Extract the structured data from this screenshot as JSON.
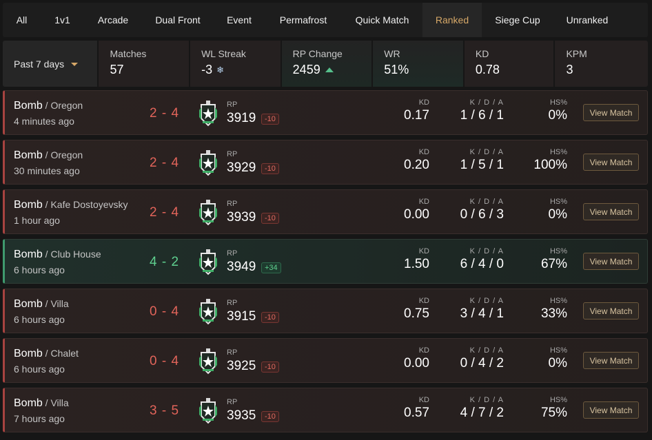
{
  "tabs": [
    {
      "label": "All",
      "active": false
    },
    {
      "label": "1v1",
      "active": false
    },
    {
      "label": "Arcade",
      "active": false
    },
    {
      "label": "Dual Front",
      "active": false
    },
    {
      "label": "Event",
      "active": false
    },
    {
      "label": "Permafrost",
      "active": false
    },
    {
      "label": "Quick Match",
      "active": false
    },
    {
      "label": "Ranked",
      "active": true
    },
    {
      "label": "Siege Cup",
      "active": false
    },
    {
      "label": "Unranked",
      "active": false
    }
  ],
  "period": {
    "label": "Past 7 days"
  },
  "stats": {
    "matches": {
      "label": "Matches",
      "value": "57"
    },
    "wl_streak": {
      "label": "WL Streak",
      "value": "-3",
      "icon": "snowflake-icon"
    },
    "rp_change": {
      "label": "RP Change",
      "value": "2459",
      "icon": "arrow-up-icon"
    },
    "wr": {
      "label": "WR",
      "value": "51%"
    },
    "kd": {
      "label": "KD",
      "value": "0.78"
    },
    "kpm": {
      "label": "KPM",
      "value": "3"
    }
  },
  "column_labels": {
    "rp": "RP",
    "kd": "KD",
    "kda": "K / D / A",
    "hs": "HS%"
  },
  "view_match_label": "View Match",
  "colors": {
    "accent": "#d6a868",
    "loss": "#e2645a",
    "win": "#5fd08f"
  },
  "matches": [
    {
      "mode": "Bomb",
      "map": "Oregon",
      "time": "4 minutes ago",
      "score": "2 - 4",
      "result": "loss",
      "rp": "3919",
      "delta": "-10",
      "kd": "0.17",
      "kda": "1 / 6 / 1",
      "hs": "0%"
    },
    {
      "mode": "Bomb",
      "map": "Oregon",
      "time": "30 minutes ago",
      "score": "2 - 4",
      "result": "loss",
      "rp": "3929",
      "delta": "-10",
      "kd": "0.20",
      "kda": "1 / 5 / 1",
      "hs": "100%"
    },
    {
      "mode": "Bomb",
      "map": "Kafe Dostoyevsky",
      "time": "1 hour ago",
      "score": "2 - 4",
      "result": "loss",
      "rp": "3939",
      "delta": "-10",
      "kd": "0.00",
      "kda": "0 / 6 / 3",
      "hs": "0%"
    },
    {
      "mode": "Bomb",
      "map": "Club House",
      "time": "6 hours ago",
      "score": "4 - 2",
      "result": "win",
      "rp": "3949",
      "delta": "+34",
      "kd": "1.50",
      "kda": "6 / 4 / 0",
      "hs": "67%"
    },
    {
      "mode": "Bomb",
      "map": "Villa",
      "time": "6 hours ago",
      "score": "0 - 4",
      "result": "loss",
      "rp": "3915",
      "delta": "-10",
      "kd": "0.75",
      "kda": "3 / 4 / 1",
      "hs": "33%"
    },
    {
      "mode": "Bomb",
      "map": "Chalet",
      "time": "6 hours ago",
      "score": "0 - 4",
      "result": "loss",
      "rp": "3925",
      "delta": "-10",
      "kd": "0.00",
      "kda": "0 / 4 / 2",
      "hs": "0%"
    },
    {
      "mode": "Bomb",
      "map": "Villa",
      "time": "7 hours ago",
      "score": "3 - 5",
      "result": "loss",
      "rp": "3935",
      "delta": "-10",
      "kd": "0.57",
      "kda": "4 / 7 / 2",
      "hs": "75%"
    }
  ]
}
